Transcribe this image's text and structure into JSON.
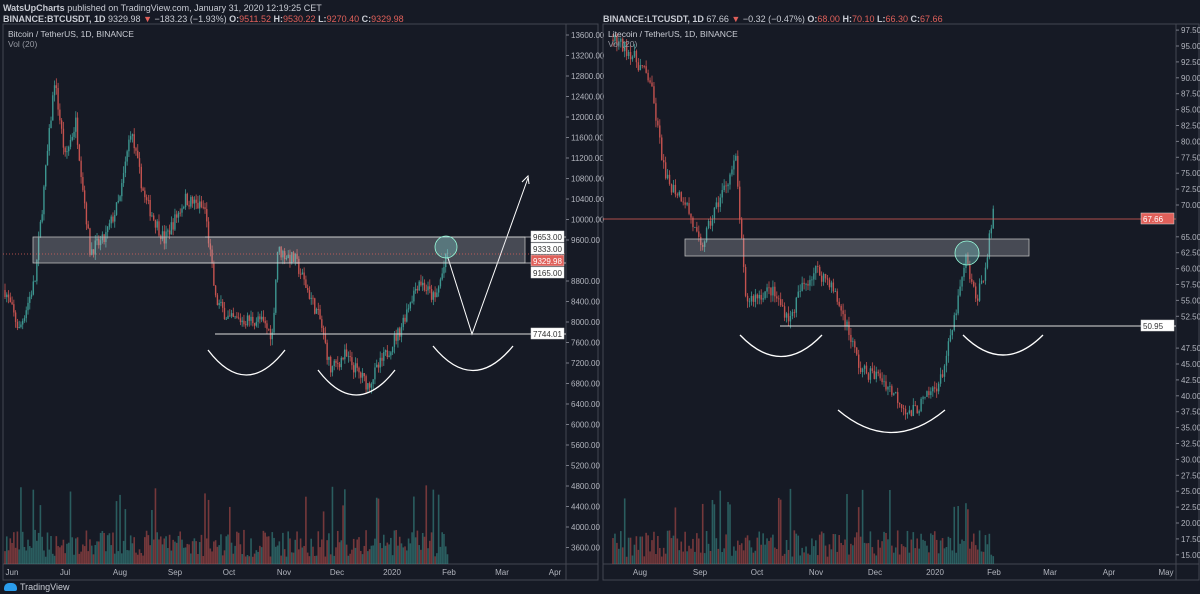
{
  "header": {
    "published": "WatsUpCharts published on TradingView.com, January 31, 2020 12:19:25 CET",
    "author": "WatsUpCharts",
    "left_ticker": {
      "symbol": "BINANCE:BTCUSDT, 1D",
      "last": "9329.98",
      "change": "−183.23 (−1.93%)",
      "o": "9511.52",
      "h": "9530.22",
      "l": "9270.40",
      "c": "9329.98"
    },
    "right_ticker": {
      "symbol": "BINANCE:LTCUSDT, 1D",
      "last": "67.66",
      "change": "−0.32 (−0.47%)",
      "o": "68.00",
      "h": "70.10",
      "l": "66.30",
      "c": "67.66"
    }
  },
  "footer": {
    "logo": "TradingView"
  },
  "colors": {
    "up": "#3d9690",
    "down": "#c4524f",
    "bg": "#161a25",
    "price_tag": "#e0605a"
  },
  "chart_data": [
    {
      "type": "candlestick",
      "title": "Bitcoin / TetherUS, 1D, BINANCE",
      "indicator": "Vol (20)",
      "start_date": "2019-05-27",
      "ylim": [
        3400,
        13800
      ],
      "yticks": [
        "13600.00",
        "13200.00",
        "12800.00",
        "12400.00",
        "12000.00",
        "11600.00",
        "11200.00",
        "10800.00",
        "10400.00",
        "10000.00",
        "9600.00",
        "8800.00",
        "8400.00",
        "8000.00",
        "7600.00",
        "7200.00",
        "6800.00",
        "6400.00",
        "6000.00",
        "5600.00",
        "5200.00",
        "4800.00",
        "4400.00",
        "4000.00",
        "3600.00"
      ],
      "xticks": [
        "Jun",
        "Jul",
        "Aug",
        "Sep",
        "Oct",
        "Nov",
        "Dec",
        "2020",
        "Feb",
        "Mar",
        "Apr"
      ],
      "price_path_day_price": [
        [
          0,
          8624
        ],
        [
          8,
          7840
        ],
        [
          17,
          8820
        ],
        [
          28,
          12720
        ],
        [
          34,
          11200
        ],
        [
          40,
          11900
        ],
        [
          48,
          9400
        ],
        [
          56,
          9600
        ],
        [
          65,
          10400
        ],
        [
          71,
          11750
        ],
        [
          79,
          10400
        ],
        [
          90,
          9600
        ],
        [
          102,
          10400
        ],
        [
          113,
          10200
        ],
        [
          119,
          8430
        ],
        [
          127,
          8040
        ],
        [
          144,
          8040
        ],
        [
          151,
          7750
        ],
        [
          154,
          9400
        ],
        [
          164,
          9200
        ],
        [
          178,
          8040
        ],
        [
          184,
          7060
        ],
        [
          192,
          7350
        ],
        [
          205,
          6770
        ],
        [
          215,
          7350
        ],
        [
          223,
          7840
        ],
        [
          229,
          8430
        ],
        [
          234,
          8820
        ],
        [
          243,
          8430
        ],
        [
          250,
          9330
        ]
      ],
      "levels": {
        "resistance_top": "9653.00",
        "resistance_mid": "9333.00",
        "resistance_bottom": "9165.00",
        "neckline": "7744.01",
        "last_price": "9329.98"
      },
      "annotations": "inverse head and shoulders, resistance zone, projected path arrow"
    },
    {
      "type": "candlestick",
      "title": "Litecoin / TetherUS, 1D, BINANCE",
      "indicator": "Vol (20)",
      "start_date": "2019-07-18",
      "ylim": [
        14,
        99
      ],
      "yticks": [
        "97.50",
        "95.00",
        "92.50",
        "90.00",
        "87.50",
        "85.00",
        "82.50",
        "80.00",
        "77.50",
        "75.00",
        "72.50",
        "70.00",
        "65.00",
        "62.50",
        "60.00",
        "57.50",
        "55.00",
        "52.50",
        "47.50",
        "45.00",
        "42.50",
        "40.00",
        "37.50",
        "35.00",
        "32.50",
        "30.00",
        "27.50",
        "25.00",
        "22.50",
        "20.00",
        "17.50",
        "15.00"
      ],
      "xticks": [
        "Aug",
        "Sep",
        "Oct",
        "Nov",
        "Dec",
        "2020",
        "Feb",
        "Mar",
        "Apr",
        "May"
      ],
      "price_path_day_price": [
        [
          0,
          96
        ],
        [
          9,
          94
        ],
        [
          19,
          89.6
        ],
        [
          27,
          74
        ],
        [
          37,
          70.8
        ],
        [
          45,
          63
        ],
        [
          52,
          69
        ],
        [
          63,
          77
        ],
        [
          68,
          55
        ],
        [
          81,
          56.6
        ],
        [
          91,
          52
        ],
        [
          96,
          56.6
        ],
        [
          104,
          59.8
        ],
        [
          111,
          58
        ],
        [
          119,
          52
        ],
        [
          127,
          44
        ],
        [
          137,
          43
        ],
        [
          147,
          39.3
        ],
        [
          152,
          37
        ],
        [
          160,
          39.3
        ],
        [
          168,
          42.5
        ],
        [
          173,
          48.8
        ],
        [
          181,
          61.4
        ],
        [
          186,
          55
        ],
        [
          191,
          60
        ],
        [
          195,
          69
        ]
      ],
      "levels": {
        "neckline": "50.95",
        "last_price": "67.66"
      },
      "annotations": "inverse head and shoulders, resistance zone"
    }
  ]
}
